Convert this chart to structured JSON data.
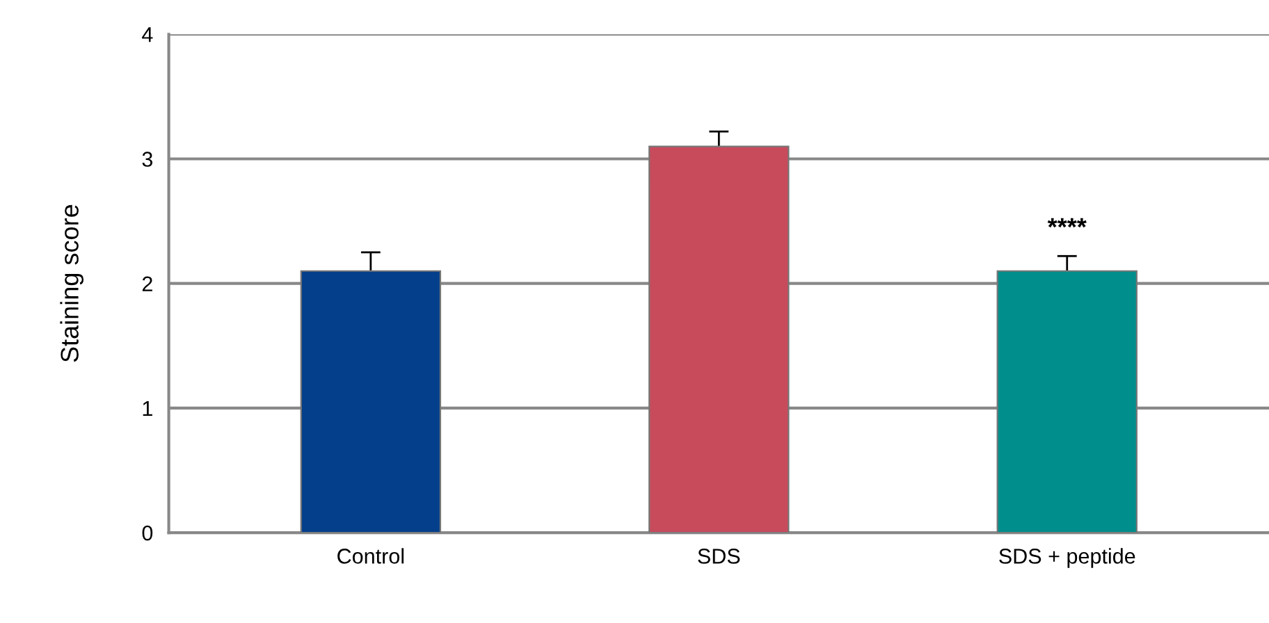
{
  "chart_data": {
    "type": "bar",
    "ylabel": "Staining score",
    "categories": [
      "Control",
      "SDS",
      "SDS + peptide"
    ],
    "values": [
      2.1,
      3.1,
      2.1
    ],
    "colors": [
      "#043f8c",
      "#c84b5c",
      "#008e8c"
    ],
    "errors": [
      0.15,
      0.12,
      0.12
    ],
    "ylim": [
      0,
      4
    ],
    "yticks": [
      0,
      1,
      2,
      3,
      4
    ],
    "grid": "y",
    "annotations": [
      "****"
    ]
  }
}
